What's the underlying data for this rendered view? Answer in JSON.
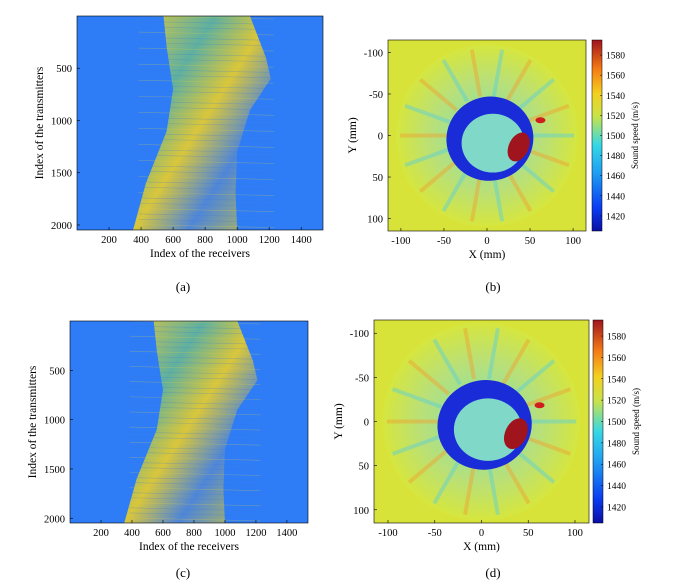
{
  "colors": {
    "background": "#2e7cf6",
    "field": "#d8e33a",
    "high": "#a0141e",
    "low": "#0a0ea6"
  },
  "chart_data": [
    {
      "type": "heatmap",
      "panel_label": "(a)",
      "xlabel": "Index of the receivers",
      "ylabel": "Index of the transmitters",
      "xlim": [
        0,
        1536
      ],
      "ylim": [
        0,
        2048
      ],
      "x_ticks": [
        "200",
        "400",
        "600",
        "800",
        "1000",
        "1200",
        "1400"
      ],
      "y_ticks": [
        "500",
        "1000",
        "1500",
        "2000"
      ]
    },
    {
      "type": "heatmap",
      "panel_label": "(b)",
      "xlabel": "X (mm)",
      "ylabel": "Y (mm)",
      "xlim": [
        -115,
        115
      ],
      "ylim": [
        -115,
        115
      ],
      "x_ticks": [
        "-100",
        "-50",
        "0",
        "50",
        "100"
      ],
      "y_ticks": [
        "-100",
        "-50",
        "0",
        "50",
        "100"
      ],
      "colorbar": {
        "label": "Sound speed (m/s)",
        "ticks": [
          "1420",
          "1440",
          "1460",
          "1480",
          "1500",
          "1520",
          "1540",
          "1560",
          "1580"
        ],
        "range": [
          1405,
          1595
        ]
      }
    },
    {
      "type": "heatmap",
      "panel_label": "(c)",
      "xlabel": "Index of the receivers",
      "ylabel": "Index of the transmitters",
      "xlim": [
        0,
        1536
      ],
      "ylim": [
        0,
        2048
      ],
      "x_ticks": [
        "200",
        "400",
        "600",
        "800",
        "1000",
        "1200",
        "1400"
      ],
      "y_ticks": [
        "500",
        "1000",
        "1500",
        "2000"
      ]
    },
    {
      "type": "heatmap",
      "panel_label": "(d)",
      "xlabel": "X (mm)",
      "ylabel": "Y (mm)",
      "xlim": [
        -115,
        115
      ],
      "ylim": [
        -115,
        115
      ],
      "x_ticks": [
        "-100",
        "-50",
        "0",
        "50",
        "100"
      ],
      "y_ticks": [
        "-100",
        "-50",
        "0",
        "50",
        "100"
      ],
      "colorbar": {
        "label": "Sound speed (m/s)",
        "ticks": [
          "1420",
          "1440",
          "1460",
          "1480",
          "1500",
          "1520",
          "1540",
          "1560",
          "1580"
        ],
        "range": [
          1405,
          1595
        ]
      }
    }
  ]
}
